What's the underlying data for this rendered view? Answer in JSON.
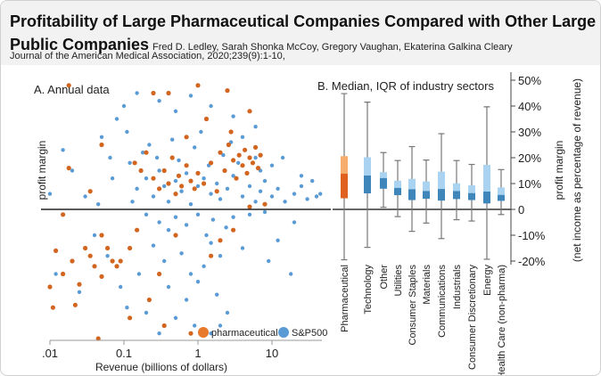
{
  "header": {
    "title": "Profitability of Large Pharmaceutical Companies Compared with Other Large Public Companies",
    "authors": "Fred D. Ledley, Sarah Shonka McCoy, Gregory Vaughan,  Ekaterina Galkina Cleary",
    "journal": "Journal of the American Medical Association, 2020;239(9):1-10,"
  },
  "colors": {
    "pharma_scatter": "#d2651f",
    "sp500_scatter": "#5b9bd5",
    "pharma_box_light": "#f7ad6c",
    "pharma_box_dark": "#e0611e",
    "box_light": "#a9d3f0",
    "box_dark": "#3f86ba",
    "whisker": "#777777"
  },
  "chart_data": [
    {
      "type": "scatter",
      "title": "A. Annual data",
      "xlabel": "Revenue (billions of dollars)",
      "ylabel": "profit margin",
      "x_scale": "log",
      "xlim": [
        0.0085,
        50
      ],
      "ylim": [
        -50,
        50
      ],
      "x_ticks": [
        0.01,
        0.1,
        1,
        10
      ],
      "x_tick_labels": [
        ".01",
        "0.1",
        "1",
        "10"
      ],
      "legend": {
        "placement": "bottom-right",
        "entries": [
          "pharmaceutical",
          "S&P500"
        ]
      },
      "series": [
        {
          "name": "S&P500",
          "points": [
            [
              0.15,
              8
            ],
            [
              0.2,
              12
            ],
            [
              0.25,
              5
            ],
            [
              0.3,
              15
            ],
            [
              0.35,
              9
            ],
            [
              0.4,
              3
            ],
            [
              0.5,
              11
            ],
            [
              0.6,
              7
            ],
            [
              0.7,
              14
            ],
            [
              0.8,
              2
            ],
            [
              1,
              9
            ],
            [
              1.2,
              12
            ],
            [
              1.5,
              6
            ],
            [
              1.8,
              10
            ],
            [
              2,
              4
            ],
            [
              2.5,
              8
            ],
            [
              3,
              13
            ],
            [
              4,
              5
            ],
            [
              5,
              9
            ],
            [
              6,
              3
            ],
            [
              7,
              7
            ],
            [
              8,
              11
            ],
            [
              10,
              5
            ],
            [
              12,
              8
            ],
            [
              15,
              3
            ],
            [
              20,
              6
            ],
            [
              25,
              9
            ],
            [
              30,
              4
            ],
            [
              40,
              5
            ],
            [
              0.12,
              18
            ],
            [
              0.18,
              22
            ],
            [
              0.22,
              25
            ],
            [
              0.28,
              20
            ],
            [
              0.45,
              27
            ],
            [
              0.55,
              19
            ],
            [
              0.9,
              24
            ],
            [
              1.1,
              30
            ],
            [
              1.4,
              17
            ],
            [
              2.2,
              21
            ],
            [
              2.8,
              26
            ],
            [
              3.5,
              18
            ],
            [
              0.13,
              3
            ],
            [
              0.2,
              -2
            ],
            [
              0.3,
              -5
            ],
            [
              0.4,
              -8
            ],
            [
              0.5,
              -3
            ],
            [
              0.7,
              -6
            ],
            [
              1,
              -2
            ],
            [
              1.3,
              -10
            ],
            [
              1.6,
              -4
            ],
            [
              2.4,
              -7
            ],
            [
              3,
              -3
            ],
            [
              5,
              -2
            ],
            [
              8,
              -1
            ],
            [
              0.25,
              -14
            ],
            [
              0.35,
              -20
            ],
            [
              0.6,
              -17
            ],
            [
              0.8,
              -25
            ],
            [
              1.2,
              -22
            ],
            [
              1.5,
              -13
            ],
            [
              2,
              -18
            ],
            [
              0.4,
              -30
            ],
            [
              0.7,
              -35
            ],
            [
              1,
              -28
            ],
            [
              1.8,
              -33
            ],
            [
              0.5,
              -42
            ],
            [
              0.9,
              -45
            ],
            [
              2.5,
              -40
            ],
            [
              0.3,
              -48
            ],
            [
              1.5,
              -48
            ],
            [
              0.02,
              15
            ],
            [
              0.015,
              23
            ],
            [
              0.03,
              5
            ],
            [
              0.05,
              28
            ],
            [
              0.07,
              12
            ],
            [
              0.04,
              -10
            ],
            [
              0.06,
              -18
            ],
            [
              0.012,
              -25
            ],
            [
              0.08,
              35
            ],
            [
              0.1,
              40
            ],
            [
              0.15,
              45
            ],
            [
              0.3,
              42
            ],
            [
              0.5,
              38
            ],
            [
              0.8,
              44
            ],
            [
              1.5,
              40
            ],
            [
              3,
              36
            ],
            [
              6,
              32
            ],
            [
              10,
              17
            ],
            [
              14,
              20
            ],
            [
              25,
              13
            ],
            [
              35,
              11
            ],
            [
              45,
              6
            ],
            [
              12,
              -12
            ],
            [
              20,
              -5
            ],
            [
              18,
              -25
            ],
            [
              9,
              -20
            ],
            [
              4,
              -15
            ],
            [
              0.09,
              -30
            ],
            [
              0.11,
              -38
            ],
            [
              0.16,
              -25
            ],
            [
              0.2,
              -40
            ],
            [
              0.01,
              6
            ],
            [
              0.025,
              -32
            ],
            [
              0.045,
              2
            ],
            [
              0.065,
              20
            ],
            [
              1,
              48
            ],
            [
              0.11,
              30
            ],
            [
              4,
              28
            ],
            [
              6,
              20
            ],
            [
              7,
              15
            ],
            [
              2,
              -45
            ]
          ]
        },
        {
          "name": "pharmaceutical",
          "points": [
            [
              0.01,
              -30
            ],
            [
              0.011,
              -38
            ],
            [
              0.012,
              -16
            ],
            [
              0.015,
              -25
            ],
            [
              0.018,
              16
            ],
            [
              0.02,
              -20
            ],
            [
              0.022,
              -37
            ],
            [
              0.025,
              -29
            ],
            [
              0.03,
              -15
            ],
            [
              0.035,
              -18
            ],
            [
              0.04,
              -22
            ],
            [
              0.05,
              -26
            ],
            [
              0.05,
              -10
            ],
            [
              0.06,
              -15
            ],
            [
              0.07,
              -20
            ],
            [
              0.08,
              -22
            ],
            [
              0.09,
              -20
            ],
            [
              0.035,
              7
            ],
            [
              0.05,
              25
            ],
            [
              0.045,
              -50
            ],
            [
              0.018,
              48
            ],
            [
              0.015,
              -2
            ],
            [
              0.12,
              -15
            ],
            [
              0.15,
              -8
            ],
            [
              0.14,
              18
            ],
            [
              0.17,
              15
            ],
            [
              0.2,
              22
            ],
            [
              0.25,
              12
            ],
            [
              0.3,
              8
            ],
            [
              0.35,
              15
            ],
            [
              0.4,
              10
            ],
            [
              0.45,
              20
            ],
            [
              0.5,
              6
            ],
            [
              0.55,
              13
            ],
            [
              0.6,
              9
            ],
            [
              0.7,
              17
            ],
            [
              0.8,
              11
            ],
            [
              0.9,
              8
            ],
            [
              1,
              14
            ],
            [
              1.2,
              10
            ],
            [
              1.5,
              18
            ],
            [
              1.8,
              7
            ],
            [
              2,
              22
            ],
            [
              2.3,
              15
            ],
            [
              2.6,
              25
            ],
            [
              3,
              19
            ],
            [
              3.3,
              12
            ],
            [
              3.6,
              21
            ],
            [
              4,
              17
            ],
            [
              4.3,
              23
            ],
            [
              4.6,
              14
            ],
            [
              5,
              20
            ],
            [
              5.5,
              18
            ],
            [
              6,
              24
            ],
            [
              6.5,
              16
            ],
            [
              7,
              21
            ],
            [
              2.8,
              30
            ],
            [
              1.3,
              35
            ],
            [
              0.7,
              28
            ],
            [
              0.4,
              45
            ],
            [
              0.25,
              45
            ],
            [
              1,
              48
            ],
            [
              2.5,
              46
            ],
            [
              5,
              38
            ],
            [
              2,
              -12
            ],
            [
              3,
              -8
            ],
            [
              0.3,
              -25
            ],
            [
              0.5,
              -10
            ],
            [
              0.12,
              -42
            ],
            [
              0.8,
              -48
            ],
            [
              0.35,
              -45
            ],
            [
              1.5,
              -18
            ],
            [
              5,
              1
            ],
            [
              8,
              2
            ],
            [
              0.22,
              -35
            ]
          ]
        }
      ]
    },
    {
      "type": "box",
      "title": "B. Median, IQR of industry sectors",
      "ylabel": "profit margin",
      "ylabel2": "(net income as percentage of revenue)",
      "ylim": [
        -20,
        50
      ],
      "y_ticks": [
        50,
        40,
        30,
        20,
        10,
        0,
        -10,
        -20
      ],
      "y_tick_labels": [
        "50%",
        "40%",
        "30%",
        "20%",
        "10%",
        "0",
        "-10%",
        "-20%"
      ],
      "categories": [
        "Pharmaceutical",
        "Technology",
        "Other",
        "Utilities",
        "Consumer Staples",
        "Materials",
        "Communications",
        "Industrials",
        "Consumer Discretionary",
        "Energy",
        "Health Care (non-pharma)"
      ],
      "boxes": [
        {
          "low": -19.5,
          "q1": 4.3,
          "median": 13.8,
          "q3": 20.6,
          "high": 44.8
        },
        {
          "low": -14.7,
          "q1": 6.2,
          "median": 13.1,
          "q3": 20.2,
          "high": 41.5
        },
        {
          "low": 0.8,
          "q1": 8.0,
          "median": 12.1,
          "q3": 14.4,
          "high": 22.0
        },
        {
          "low": -2.8,
          "q1": 5.5,
          "median": 8.3,
          "q3": 11.1,
          "high": 18.9
        },
        {
          "low": -8.5,
          "q1": 3.6,
          "median": 7.8,
          "q3": 11.8,
          "high": 24.3
        },
        {
          "low": -5.3,
          "q1": 4.1,
          "median": 7.1,
          "q3": 10.8,
          "high": 19.1
        },
        {
          "low": -11.3,
          "q1": 3.4,
          "median": 7.9,
          "q3": 14.6,
          "high": 29.3
        },
        {
          "low": -4.0,
          "q1": 4.0,
          "median": 7.1,
          "q3": 10.1,
          "high": 18.9
        },
        {
          "low": -4.5,
          "q1": 3.6,
          "median": 6.3,
          "q3": 9.3,
          "high": 17.4
        },
        {
          "low": -19.3,
          "q1": 2.3,
          "median": 6.9,
          "q3": 17.2,
          "high": 39.7
        },
        {
          "low": -2.0,
          "q1": 3.3,
          "median": 5.6,
          "q3": 8.5,
          "high": 15.4
        }
      ]
    }
  ]
}
